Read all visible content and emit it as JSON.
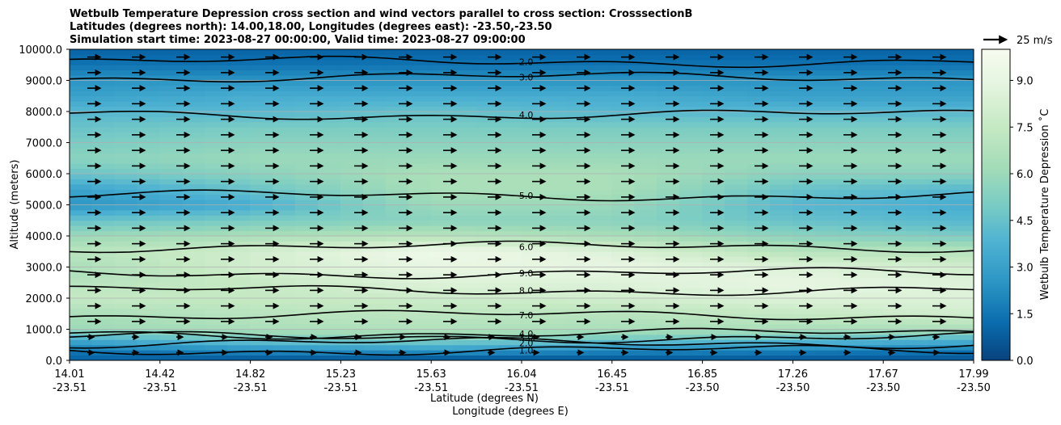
{
  "chart_data": {
    "type": "heatmap",
    "title_lines": [
      "Wetbulb Temperature Depression cross section and wind vectors parallel to cross section: CrosssectionB",
      "Latitudes (degrees north): 14.00,18.00, Longitudes (degrees east): -23.50,-23.50",
      "Simulation start time: 2023-08-27 00:00:00, Valid time: 2023-08-27 09:00:00"
    ],
    "xlabel": "Latitude (degrees N)",
    "xlabel2": "Longitude (degrees E)",
    "ylabel": "Altitude (meters)",
    "ylim": [
      0,
      10000
    ],
    "grid": true,
    "x_ticks": [
      {
        "lat": "14.01",
        "lon": "-23.51"
      },
      {
        "lat": "14.42",
        "lon": "-23.51"
      },
      {
        "lat": "14.82",
        "lon": "-23.51"
      },
      {
        "lat": "15.23",
        "lon": "-23.51"
      },
      {
        "lat": "15.63",
        "lon": "-23.51"
      },
      {
        "lat": "16.04",
        "lon": "-23.51"
      },
      {
        "lat": "16.45",
        "lon": "-23.51"
      },
      {
        "lat": "16.85",
        "lon": "-23.50"
      },
      {
        "lat": "17.26",
        "lon": "-23.50"
      },
      {
        "lat": "17.67",
        "lon": "-23.50"
      },
      {
        "lat": "17.99",
        "lon": "-23.50"
      }
    ],
    "y_ticks": [
      "0.0",
      "1000.0",
      "2000.0",
      "3000.0",
      "4000.0",
      "5000.0",
      "6000.0",
      "7000.0",
      "8000.0",
      "9000.0",
      "10000.0"
    ],
    "y_tick_values": [
      0,
      1000,
      2000,
      3000,
      4000,
      5000,
      6000,
      7000,
      8000,
      9000,
      10000
    ],
    "colorbar": {
      "label": "Wetbulb Temperature Depression ˚C",
      "range": [
        0,
        10
      ],
      "ticks": [
        "0.0",
        "1.5",
        "3.0",
        "4.5",
        "6.0",
        "7.5",
        "9.0"
      ],
      "tick_values": [
        0,
        1.5,
        3.0,
        4.5,
        6.0,
        7.5,
        9.0
      ],
      "colormap": [
        "#08427e",
        "#0a6cad",
        "#2c95c4",
        "#4eb2d2",
        "#7accc4",
        "#a3dcb8",
        "#c5e9c3",
        "#e3f4de",
        "#f7fcf0"
      ]
    },
    "wind_reference": "25 m/s",
    "profile_altitudes": [
      0,
      300,
      700,
      1000,
      1500,
      2000,
      2500,
      3000,
      3500,
      4000,
      4500,
      5000,
      5500,
      6000,
      6500,
      7000,
      7500,
      8000,
      8500,
      9000,
      9500,
      10000
    ],
    "profile_columns": [
      {
        "x": 0.0,
        "values": [
          1.0,
          1.5,
          3.5,
          6.0,
          6.5,
          7.5,
          7.0,
          6.5,
          7.0,
          6.0,
          4.5,
          2.5,
          3.0,
          4.5,
          5.5,
          5.0,
          4.5,
          4.0,
          3.0,
          2.5,
          1.5,
          1.0
        ]
      },
      {
        "x": 0.2,
        "values": [
          0.5,
          2.0,
          5.0,
          6.5,
          7.0,
          7.5,
          7.5,
          8.0,
          8.0,
          6.5,
          5.0,
          3.5,
          4.5,
          5.5,
          6.0,
          5.5,
          5.0,
          4.0,
          3.5,
          2.5,
          1.5,
          1.0
        ]
      },
      {
        "x": 0.4,
        "values": [
          0.3,
          2.5,
          5.5,
          6.8,
          7.2,
          7.8,
          8.5,
          9.0,
          9.5,
          7.0,
          5.5,
          6.0,
          6.5,
          6.5,
          6.0,
          5.5,
          5.0,
          4.5,
          3.5,
          2.5,
          1.5,
          1.0
        ]
      },
      {
        "x": 0.6,
        "values": [
          0.5,
          2.0,
          5.0,
          6.5,
          7.0,
          8.0,
          8.5,
          9.0,
          8.5,
          6.5,
          5.5,
          6.0,
          6.5,
          6.5,
          6.0,
          5.5,
          5.0,
          4.0,
          3.5,
          2.5,
          1.5,
          1.0
        ]
      },
      {
        "x": 0.8,
        "values": [
          0.5,
          1.8,
          4.5,
          6.5,
          7.5,
          8.5,
          9.0,
          8.5,
          7.0,
          5.5,
          4.5,
          4.0,
          4.5,
          5.5,
          6.0,
          5.5,
          5.0,
          4.0,
          3.0,
          2.5,
          1.5,
          1.0
        ]
      },
      {
        "x": 1.0,
        "values": [
          0.5,
          1.5,
          4.0,
          6.5,
          8.0,
          8.5,
          8.5,
          8.0,
          7.0,
          5.0,
          4.0,
          3.5,
          4.0,
          5.5,
          6.0,
          5.5,
          5.0,
          4.0,
          3.0,
          2.5,
          1.5,
          1.0
        ]
      }
    ],
    "contours": [
      {
        "label": "1.0",
        "alt": 320
      },
      {
        "label": "2.0",
        "alt": 560
      },
      {
        "label": "3.0",
        "alt": 740
      },
      {
        "label": "4.0",
        "alt": 860
      },
      {
        "label": "7.0",
        "alt": 1450
      },
      {
        "label": "8.0",
        "alt": 2250
      },
      {
        "label": "9.0",
        "alt": 2800
      },
      {
        "label": "6.0",
        "alt": 3650
      },
      {
        "label": "5.0",
        "alt": 5300
      },
      {
        "label": "4.0",
        "alt": 7900
      },
      {
        "label": "3.0",
        "alt": 9100
      },
      {
        "label": "2.0",
        "alt": 9600
      }
    ]
  }
}
